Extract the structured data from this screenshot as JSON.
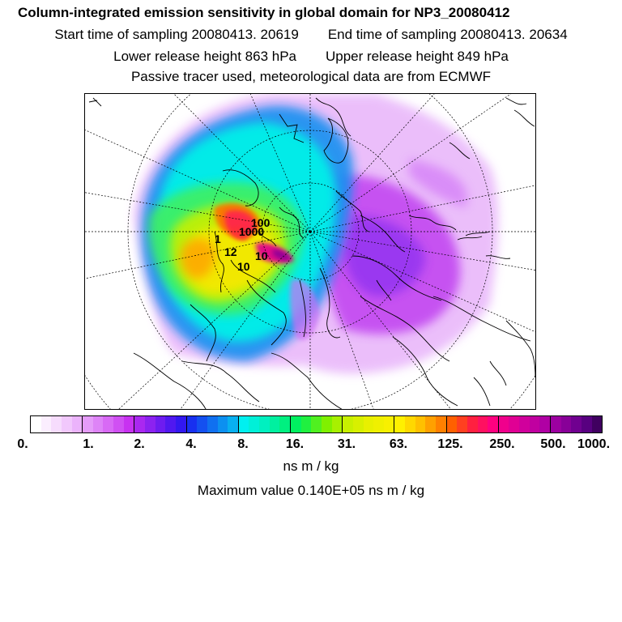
{
  "header": {
    "title": "Column-integrated emission sensitivity in global domain for NP3_20080412",
    "start_label": "Start time of sampling 20080413. 20619",
    "end_label": "End time of sampling 20080413. 20634",
    "lower_label": "Lower release height  863 hPa",
    "upper_label": "Upper release height  849 hPa",
    "tracer_note": "Passive tracer used, meteorological data are from ECMWF"
  },
  "map": {
    "contour_labels": [
      "100",
      "1000",
      "1",
      "12",
      "10",
      "10"
    ]
  },
  "legend": {
    "ticks": [
      "0.",
      "1.",
      "2.",
      "4.",
      "8.",
      "16.",
      "31.",
      "63.",
      "125.",
      "250.",
      "500.",
      "1000."
    ],
    "unit": "ns m / kg",
    "max_value_label": "Maximum value  0.140E+05 ns m / kg",
    "colors": [
      "#ffffff",
      "#fbeefe",
      "#f6dcfd",
      "#f1c8fc",
      "#ebb3fb",
      "#e59cf9",
      "#de84f7",
      "#d86af5",
      "#d050f3",
      "#c832f1",
      "#aa28f0",
      "#8c22f0",
      "#6e1cf0",
      "#5018f0",
      "#3218f0",
      "#1830f0",
      "#1450f0",
      "#1070f0",
      "#0c90f0",
      "#08b0f0",
      "#00f0f0",
      "#00f0d8",
      "#00f0c0",
      "#00f0a0",
      "#00f080",
      "#00f060",
      "#20f040",
      "#50f020",
      "#80f000",
      "#a8f000",
      "#c8f000",
      "#d8f000",
      "#e8f000",
      "#f0f000",
      "#f8f000",
      "#fff000",
      "#ffd800",
      "#ffc000",
      "#ffa000",
      "#ff8000",
      "#ff6000",
      "#ff4020",
      "#ff2040",
      "#ff1060",
      "#ff0080",
      "#f0008c",
      "#e00094",
      "#d0009c",
      "#c000a0",
      "#b000a4",
      "#9c00a0",
      "#880098",
      "#700090",
      "#580080",
      "#400060"
    ]
  }
}
